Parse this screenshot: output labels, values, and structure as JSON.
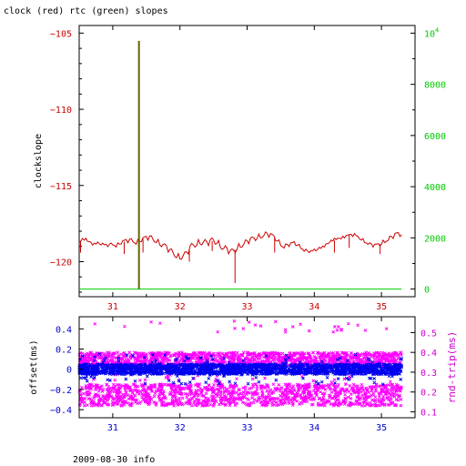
{
  "page": {
    "title": "clock (red) rtc (green) slopes",
    "footer": "2009-08-30 info"
  },
  "chart_data": [
    {
      "type": "line",
      "title": "clock (red) rtc (green) slopes",
      "xlabel": "",
      "ylabel": "clockslope",
      "xlim": [
        30.5,
        35.5
      ],
      "ylim": [
        -122.3,
        -104.5
      ],
      "y2lim": [
        -300,
        10300
      ],
      "xticks": [
        31,
        32,
        33,
        34,
        35
      ],
      "yticks": [
        -105,
        -110,
        -115,
        -120
      ],
      "y2ticks": [
        0,
        2000,
        4000,
        6000,
        8000
      ],
      "y2_top_label": "10^4",
      "colors": {
        "clock": "#cc0000",
        "rtc": "#00cc00",
        "spike": "#666600"
      },
      "series": [
        {
          "name": "clock",
          "axis": "left",
          "x": [
            30.5,
            30.55,
            30.6,
            30.65,
            30.7,
            30.75,
            30.8,
            30.85,
            30.9,
            30.95,
            31.0,
            31.05,
            31.1,
            31.15,
            31.2,
            31.25,
            31.3,
            31.35,
            31.4,
            31.45,
            31.5,
            31.55,
            31.6,
            31.65,
            31.7,
            31.75,
            31.8,
            31.85,
            31.9,
            31.95,
            32.0,
            32.05,
            32.1,
            32.15,
            32.2,
            32.25,
            32.3,
            32.35,
            32.4,
            32.45,
            32.5,
            32.55,
            32.6,
            32.65,
            32.7,
            32.75,
            32.8,
            32.85,
            32.9,
            32.95,
            33.0,
            33.05,
            33.1,
            33.15,
            33.2,
            33.25,
            33.3,
            33.35,
            33.4,
            33.45,
            33.5,
            33.55,
            33.6,
            33.65,
            33.7,
            33.75,
            33.8,
            33.85,
            33.9,
            33.95,
            34.0,
            34.05,
            34.1,
            34.15,
            34.2,
            34.25,
            34.3,
            34.35,
            34.4,
            34.45,
            34.5,
            34.55,
            34.6,
            34.65,
            34.7,
            34.75,
            34.8,
            34.85,
            34.9,
            34.95,
            35.0,
            35.05,
            35.1,
            35.15,
            35.2,
            35.25,
            35.3
          ],
          "values": [
            -118.7,
            -118.6,
            -118.6,
            -118.7,
            -118.8,
            -118.7,
            -118.8,
            -118.9,
            -119.0,
            -118.9,
            -118.8,
            -118.9,
            -118.8,
            -118.7,
            -118.7,
            -118.6,
            -118.6,
            -118.7,
            -118.6,
            -118.5,
            -118.5,
            -118.4,
            -118.5,
            -118.6,
            -118.8,
            -118.9,
            -119.1,
            -119.3,
            -119.4,
            -119.6,
            -119.7,
            -119.6,
            -119.5,
            -119.1,
            -118.9,
            -118.8,
            -118.7,
            -118.7,
            -118.8,
            -118.7,
            -118.6,
            -118.7,
            -118.9,
            -119.1,
            -119.2,
            -119.4,
            -119.3,
            -119.1,
            -118.9,
            -118.8,
            -118.7,
            -118.6,
            -118.5,
            -118.4,
            -118.3,
            -118.2,
            -118.2,
            -118.3,
            -118.4,
            -118.6,
            -118.8,
            -119.0,
            -118.9,
            -118.9,
            -118.8,
            -118.9,
            -119.0,
            -119.2,
            -119.3,
            -119.4,
            -119.3,
            -119.2,
            -119.0,
            -118.9,
            -118.8,
            -118.7,
            -118.6,
            -118.5,
            -118.4,
            -118.3,
            -118.2,
            -118.3,
            -118.3,
            -118.4,
            -118.5,
            -118.6,
            -118.8,
            -118.9,
            -119.0,
            -118.9,
            -118.8,
            -118.6,
            -118.5,
            -118.4,
            -118.3,
            -118.2,
            -118.2
          ]
        },
        {
          "name": "rtc",
          "axis": "right",
          "x": [
            30.5,
            35.3
          ],
          "values": [
            0,
            0
          ]
        },
        {
          "name": "spike",
          "axis": "right",
          "x": [
            31.39,
            31.39
          ],
          "values": [
            0,
            9700
          ]
        }
      ],
      "dips": [
        {
          "x": 30.52,
          "y": -119.4
        },
        {
          "x": 31.17,
          "y": -119.5
        },
        {
          "x": 31.45,
          "y": -119.4
        },
        {
          "x": 31.84,
          "y": -119.3
        },
        {
          "x": 32.14,
          "y": -120.0
        },
        {
          "x": 32.48,
          "y": -119.3
        },
        {
          "x": 32.82,
          "y": -121.4
        },
        {
          "x": 33.41,
          "y": -119.4
        },
        {
          "x": 34.3,
          "y": -119.4
        },
        {
          "x": 34.52,
          "y": -119.1
        },
        {
          "x": 34.98,
          "y": -119.5
        }
      ]
    },
    {
      "type": "scatter",
      "xlabel": "",
      "ylabel": "offset(ms)",
      "y2label": "rnd-trip(ms)",
      "xlim": [
        30.5,
        35.5
      ],
      "ylim": [
        -0.48,
        0.52
      ],
      "y2lim": [
        0.07,
        0.58
      ],
      "xticks": [
        31,
        32,
        33,
        34,
        35
      ],
      "yticks": [
        0.4,
        0.2,
        0,
        -0.2,
        -0.4
      ],
      "ytick_labels": [
        "0.4",
        "0.2",
        "0",
        "−0.2",
        "−0.4"
      ],
      "y2ticks": [
        0.5,
        0.4,
        0.3,
        0.2,
        0.1
      ],
      "colors": {
        "offset": "#0000ee",
        "roundtrip": "#ff00ff",
        "left_axis": "#0000cc",
        "right_axis": "#cc00cc"
      },
      "series": [
        {
          "name": "offset",
          "axis": "left",
          "x_range": [
            30.5,
            35.3
          ],
          "center": 0.0,
          "spread": 0.05,
          "outlier_spread": 0.15
        },
        {
          "name": "roundtrip",
          "axis": "right",
          "x_range": [
            30.5,
            35.3
          ],
          "bands": [
            [
              0.33,
              0.4
            ],
            [
              0.13,
              0.24
            ]
          ],
          "outliers": [
            0.5,
            0.56
          ]
        }
      ]
    }
  ]
}
